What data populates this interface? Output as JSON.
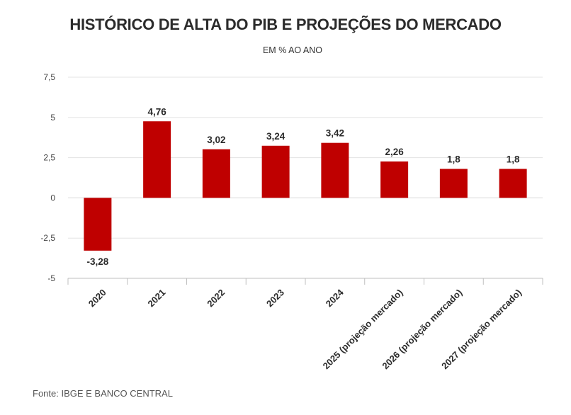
{
  "title": "HISTÓRICO DE ALTA DO PIB E PROJEÇÕES DO MERCADO",
  "subtitle": "EM % AO ANO",
  "source": "Fonte: IBGE E BANCO CENTRAL",
  "colors": {
    "bar": "#bf0000",
    "grid": "#e3e3e3",
    "axis": "#bfbfbf",
    "text": "#333333"
  },
  "chart_data": {
    "type": "bar",
    "title": "HISTÓRICO DE ALTA DO PIB E PROJEÇÕES DO MERCADO",
    "subtitle": "EM % AO ANO",
    "xlabel": "",
    "ylabel": "",
    "categories": [
      "2020",
      "2021",
      "2022",
      "2023",
      "2024",
      "2025 (projeção mercado)",
      "2026 (projeção mercado)",
      "2027 (projeção mercado)"
    ],
    "values": [
      -3.28,
      4.76,
      3.02,
      3.24,
      3.42,
      2.26,
      1.8,
      1.8
    ],
    "value_labels": [
      "-3,28",
      "4,76",
      "3,02",
      "3,24",
      "3,42",
      "2,26",
      "1,8",
      "1,8"
    ],
    "ylim": [
      -5,
      7.5
    ],
    "yticks": [
      -5,
      -2.5,
      0,
      2.5,
      5,
      7.5
    ],
    "ytick_labels": [
      "-5",
      "-2,5",
      "0",
      "2,5",
      "5",
      "7,5"
    ],
    "grid": true,
    "legend": "none"
  }
}
